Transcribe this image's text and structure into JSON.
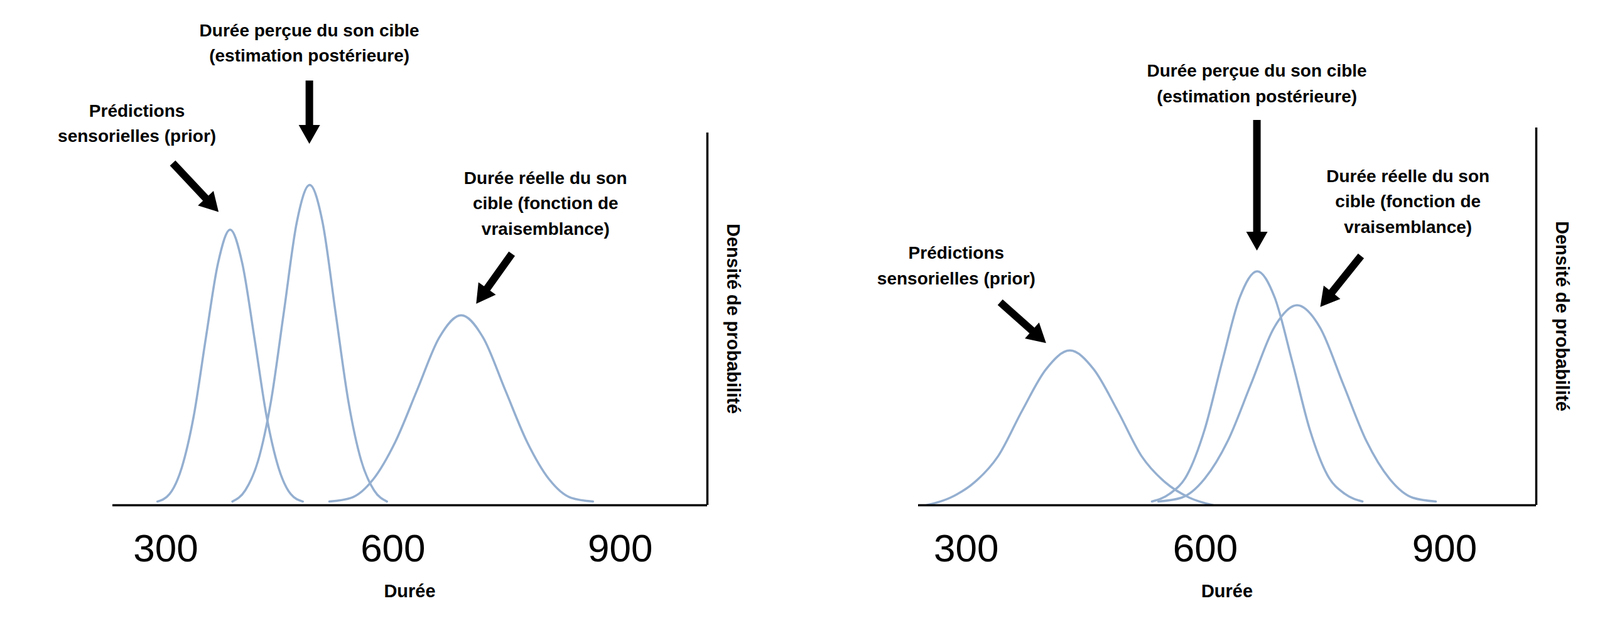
{
  "chart_data": [
    {
      "type": "line",
      "xlabel": "Durée",
      "ylabel": "Densité de probabilité",
      "xlim": [
        230,
        1015
      ],
      "xticks": [
        300,
        600,
        900
      ],
      "ylim": [
        0,
        1
      ],
      "tick_labels": "x",
      "color": "#94afd0",
      "series": [
        {
          "name": "Prédictions\nsensorielles (prior)",
          "x": [
            289,
            305,
            321,
            337,
            353,
            369,
            385,
            401,
            417,
            433,
            449,
            465,
            481
          ],
          "values": [
            0.01,
            0.03,
            0.1,
            0.24,
            0.45,
            0.65,
            0.74,
            0.65,
            0.45,
            0.24,
            0.1,
            0.03,
            0.01
          ]
        },
        {
          "name": "Durée perçue du son cible\n(estimation postérieure)",
          "x": [
            388,
            405,
            422,
            439,
            456,
            473,
            490,
            507,
            524,
            541,
            558,
            575,
            592
          ],
          "values": [
            0.01,
            0.04,
            0.12,
            0.28,
            0.52,
            0.76,
            0.86,
            0.76,
            0.52,
            0.28,
            0.12,
            0.04,
            0.01
          ]
        },
        {
          "name": "Durée réelle du son\ncible (fonction de\nvraisemblance)",
          "x": [
            516,
            545,
            574,
            603,
            632,
            661,
            690,
            719,
            748,
            777,
            806,
            835,
            864
          ],
          "values": [
            0.01,
            0.02,
            0.07,
            0.17,
            0.31,
            0.45,
            0.51,
            0.45,
            0.31,
            0.17,
            0.07,
            0.02,
            0.01
          ]
        }
      ]
    },
    {
      "type": "line",
      "xlabel": "Durée",
      "ylabel": "Densité de probabilité",
      "xlim": [
        240,
        1015
      ],
      "xticks": [
        300,
        600,
        900
      ],
      "ylim": [
        0,
        1
      ],
      "tick_labels": "x",
      "color": "#94afd0",
      "series": [
        {
          "name": "Prédictions\nsensorielles (prior)",
          "x": [
            250,
            280,
            310,
            340,
            370,
            400,
            430,
            460,
            490,
            520,
            550,
            580,
            610
          ],
          "values": [
            0.0,
            0.02,
            0.06,
            0.13,
            0.25,
            0.36,
            0.41,
            0.36,
            0.25,
            0.13,
            0.06,
            0.02,
            0.0
          ]
        },
        {
          "name": "Durée perçue du son cible\n(estimation postérieure)",
          "x": [
            533,
            555,
            577,
            599,
            621,
            643,
            665,
            687,
            709,
            731,
            753,
            775,
            797
          ],
          "values": [
            0.01,
            0.03,
            0.08,
            0.2,
            0.38,
            0.55,
            0.62,
            0.55,
            0.38,
            0.2,
            0.08,
            0.03,
            0.01
          ]
        },
        {
          "name": "Durée réelle du son\ncible (fonction de\nvraisemblance)",
          "x": [
            541,
            570,
            599,
            628,
            657,
            686,
            715,
            744,
            773,
            802,
            831,
            860,
            889
          ],
          "values": [
            0.01,
            0.02,
            0.07,
            0.17,
            0.32,
            0.47,
            0.53,
            0.47,
            0.32,
            0.17,
            0.07,
            0.02,
            0.01
          ]
        }
      ]
    }
  ]
}
